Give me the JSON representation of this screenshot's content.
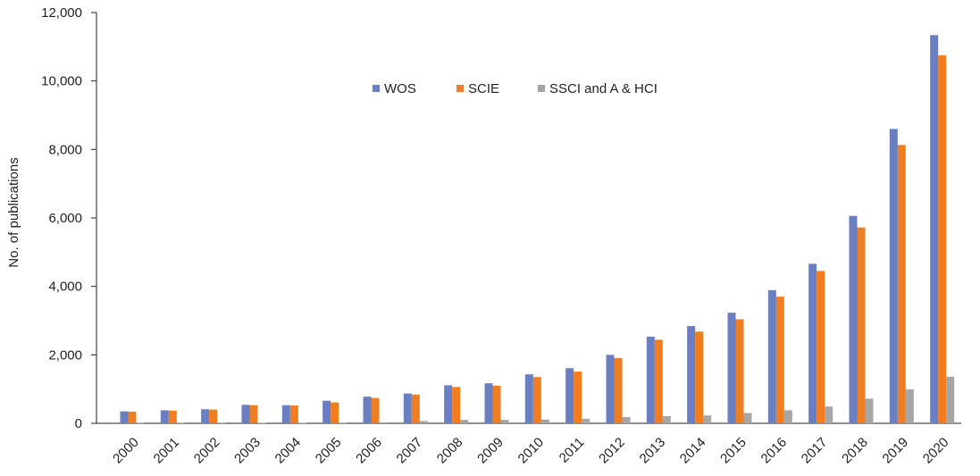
{
  "chart_data": {
    "type": "bar",
    "title": "",
    "xlabel": "",
    "ylabel": "No. of publications",
    "ylim": [
      0,
      12000
    ],
    "yticks": [
      0,
      2000,
      4000,
      6000,
      8000,
      10000,
      12000
    ],
    "ytick_labels": [
      "0",
      "2,000",
      "4,000",
      "6,000",
      "8,000",
      "10,000",
      "12,000"
    ],
    "categories": [
      "2000",
      "2001",
      "2002",
      "2003",
      "2004",
      "2005",
      "2006",
      "2007",
      "2008",
      "2009",
      "2010",
      "2011",
      "2012",
      "2013",
      "2014",
      "2015",
      "2016",
      "2017",
      "2018",
      "2019",
      "2020"
    ],
    "series": [
      {
        "name": "WOS",
        "color": "#6a7fc1",
        "values": [
          350,
          380,
          410,
          540,
          530,
          660,
          780,
          870,
          1110,
          1170,
          1430,
          1610,
          2000,
          2530,
          2840,
          3230,
          3890,
          4660,
          6060,
          8600,
          11340
        ]
      },
      {
        "name": "SCIE",
        "color": "#ef7d22",
        "values": [
          340,
          370,
          400,
          530,
          520,
          610,
          740,
          840,
          1060,
          1100,
          1350,
          1510,
          1910,
          2440,
          2680,
          3040,
          3700,
          4450,
          5720,
          8130,
          10750
        ]
      },
      {
        "name": "SSCI and A & HCI",
        "color": "#a6a6a6",
        "values": [
          10,
          10,
          10,
          15,
          15,
          20,
          30,
          70,
          100,
          100,
          110,
          130,
          180,
          210,
          230,
          300,
          380,
          490,
          720,
          990,
          1360
        ]
      }
    ],
    "legend_position": "top-center",
    "grid": false
  }
}
